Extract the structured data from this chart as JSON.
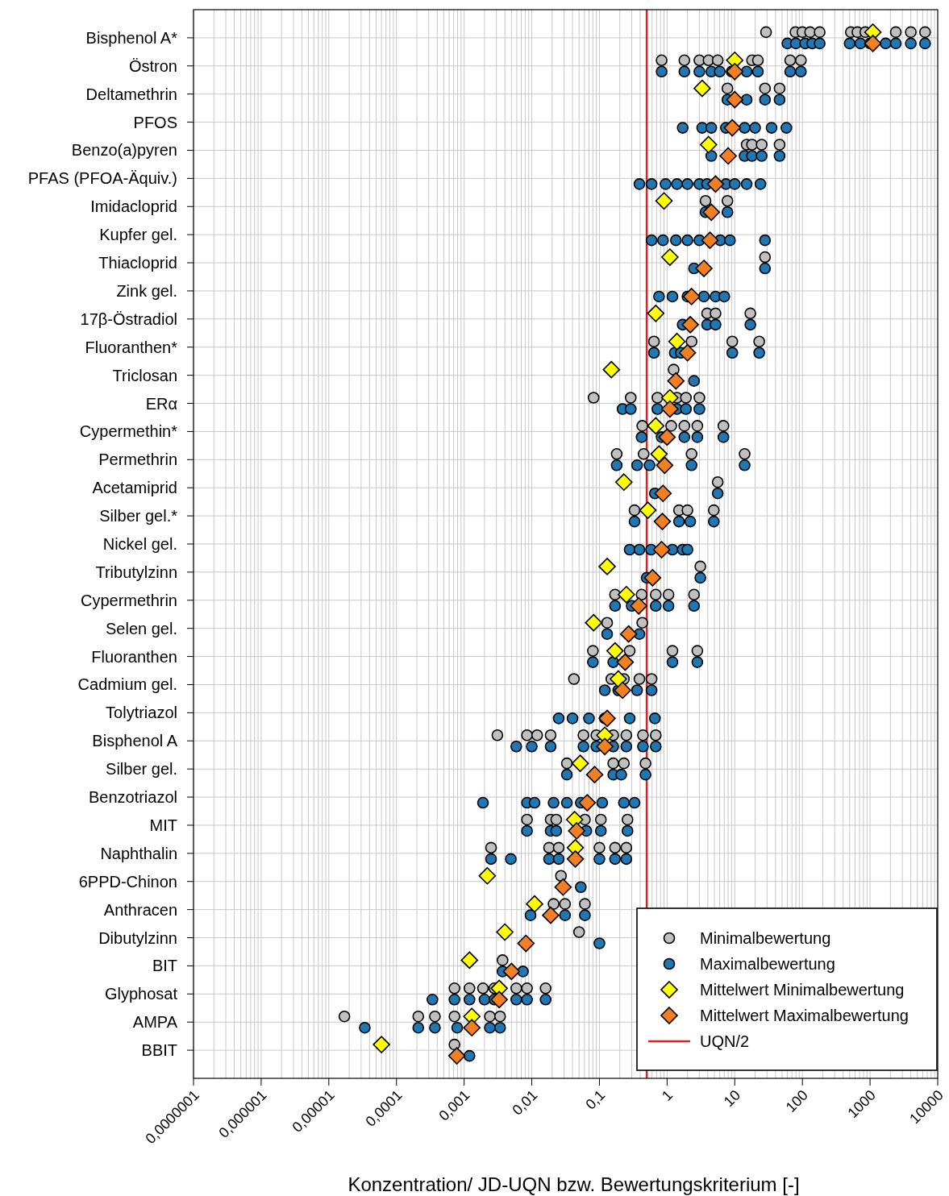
{
  "chart_data": {
    "type": "scatter",
    "orientation": "horizontal",
    "log": "x",
    "grid": true,
    "legend": "bottom right",
    "xlabel": "Konzentration/ JD-UQN bzw. Bewertungskriterium [-]",
    "categories": [
      "Bisphenol A*",
      "Östron",
      "Deltamethrin",
      "PFOS",
      "Benzo(a)pyren",
      "PFAS (PFOA-Äquiv.)",
      "Imidacloprid",
      "Kupfer gel.",
      "Thiacloprid",
      "Zink gel.",
      "17β-Östradiol",
      "Fluoranthen*",
      "Triclosan",
      "ERα",
      "Cypermethin*",
      "Permethrin",
      "Acetamiprid",
      "Silber gel.*",
      "Nickel gel.",
      "Tributylzinn",
      "Cypermethrin",
      "Selen gel.",
      "Fluoranthen",
      "Cadmium gel.",
      "Tolytriazol",
      "Bisphenol A",
      "Silber gel.",
      "Benzotriazol",
      "MIT",
      "Naphthalin",
      "6PPD-Chinon",
      "Anthracen",
      "Dibutylzinn",
      "BIT",
      "Glyphosat",
      "AMPA",
      "BBIT"
    ],
    "xlim": [
      1e-07,
      10000
    ],
    "xticks": [
      {
        "value": 1e-07,
        "label": "0,0000001"
      },
      {
        "value": 1e-06,
        "label": "0,000001"
      },
      {
        "value": 1e-05,
        "label": "0,00001"
      },
      {
        "value": 0.0001,
        "label": "0,0001"
      },
      {
        "value": 0.001,
        "label": "0,001"
      },
      {
        "value": 0.01,
        "label": "0,01"
      },
      {
        "value": 0.1,
        "label": "0,1"
      },
      1,
      10,
      100,
      1000,
      10000
    ],
    "ref_lines": [
      {
        "axis": "x",
        "value": 0.5,
        "label": "UQN/2",
        "color": "#e3211c"
      }
    ],
    "series": [
      {
        "name": "Minimalbewertung",
        "color": "#c0c0c0",
        "marker": "circle",
        "x": [
          "Bisphenol A*",
          "Bisphenol A*",
          "Bisphenol A*",
          "Bisphenol A*",
          "Bisphenol A*",
          "Bisphenol A*",
          "Bisphenol A*",
          "Bisphenol A*",
          "Bisphenol A*",
          "Bisphenol A*",
          "Bisphenol A*",
          "Östron",
          "Östron",
          "Östron",
          "Östron",
          "Östron",
          "Östron",
          "Östron",
          "Östron",
          "Östron",
          "Deltamethrin",
          "Deltamethrin",
          "Deltamethrin",
          "Benzo(a)pyren",
          "Benzo(a)pyren",
          "Benzo(a)pyren",
          "Benzo(a)pyren",
          "Imidacloprid",
          "Imidacloprid",
          "Thiacloprid",
          "17β-Östradiol",
          "17β-Östradiol",
          "17β-Östradiol",
          "Fluoranthen*",
          "Fluoranthen*",
          "Fluoranthen*",
          "Fluoranthen*",
          "Triclosan",
          "ERα",
          "ERα",
          "ERα",
          "ERα",
          "ERα",
          "ERα",
          "Cypermethin*",
          "Cypermethin*",
          "Cypermethin*",
          "Cypermethin*",
          "Cypermethin*",
          "Permethrin",
          "Permethrin",
          "Permethrin",
          "Permethrin",
          "Acetamiprid",
          "Silber gel.*",
          "Silber gel.*",
          "Silber gel.*",
          "Silber gel.*",
          "Tributylzinn",
          "Cypermethrin",
          "Cypermethrin",
          "Cypermethrin",
          "Cypermethrin",
          "Cypermethrin",
          "Selen gel.",
          "Selen gel.",
          "Fluoranthen",
          "Fluoranthen",
          "Fluoranthen",
          "Fluoranthen",
          "Cadmium gel.",
          "Cadmium gel.",
          "Cadmium gel.",
          "Cadmium gel.",
          "Cadmium gel.",
          "Bisphenol A",
          "Bisphenol A",
          "Bisphenol A",
          "Bisphenol A",
          "Bisphenol A",
          "Bisphenol A",
          "Bisphenol A",
          "Bisphenol A",
          "Bisphenol A",
          "Bisphenol A",
          "Silber gel.",
          "Silber gel.",
          "Silber gel.",
          "Silber gel.",
          "MIT",
          "MIT",
          "MIT",
          "MIT",
          "MIT",
          "MIT",
          "Naphthalin",
          "Naphthalin",
          "Naphthalin",
          "Naphthalin",
          "Naphthalin",
          "Naphthalin",
          "6PPD-Chinon",
          "Anthracen",
          "Anthracen",
          "Anthracen",
          "Dibutylzinn",
          "BIT",
          "Glyphosat",
          "Glyphosat",
          "Glyphosat",
          "Glyphosat",
          "Glyphosat",
          "Glyphosat",
          "Glyphosat",
          "AMPA",
          "AMPA",
          "AMPA",
          "AMPA",
          "AMPA",
          "AMPA",
          "BBIT"
        ],
        "values": [
          29,
          79,
          100,
          130,
          180,
          520,
          650,
          850,
          2400,
          4000,
          6500,
          0.83,
          1.8,
          3,
          4.1,
          5.6,
          18,
          22,
          66,
          95,
          7.8,
          28,
          46,
          15,
          18,
          25,
          46,
          3.7,
          7.8,
          28,
          3.9,
          5.2,
          17,
          0.64,
          2.3,
          9.2,
          23,
          1.25,
          0.082,
          0.29,
          0.72,
          1.4,
          1.9,
          3,
          0.43,
          1.15,
          1.8,
          2.8,
          6.8,
          0.18,
          0.45,
          2.3,
          14,
          5.6,
          0.33,
          1.5,
          2,
          4.9,
          3.1,
          0.17,
          0.42,
          0.68,
          1.05,
          2.5,
          0.13,
          0.43,
          0.08,
          0.28,
          1.2,
          2.8,
          0.042,
          0.15,
          0.23,
          0.39,
          0.59,
          0.0031,
          0.0085,
          0.012,
          0.019,
          0.058,
          0.09,
          0.16,
          0.25,
          0.44,
          0.68,
          0.033,
          0.16,
          0.23,
          0.48,
          0.0085,
          0.019,
          0.023,
          0.061,
          0.105,
          0.26,
          0.0025,
          0.018,
          0.025,
          0.1,
          0.17,
          0.25,
          0.027,
          0.021,
          0.031,
          0.061,
          0.05,
          0.0037,
          0.00072,
          0.0012,
          0.0019,
          0.0028,
          0.0059,
          0.0085,
          0.016,
          1.7e-05,
          0.00021,
          0.00037,
          0.00072,
          0.0024,
          0.0034,
          0.00072
        ]
      },
      {
        "name": "Maximalbewertung",
        "color": "#1f78b4",
        "marker": "circle",
        "x": [
          "Bisphenol A*",
          "Bisphenol A*",
          "Bisphenol A*",
          "Bisphenol A*",
          "Bisphenol A*",
          "Bisphenol A*",
          "Bisphenol A*",
          "Bisphenol A*",
          "Bisphenol A*",
          "Bisphenol A*",
          "Bisphenol A*",
          "Bisphenol A*",
          "Östron",
          "Östron",
          "Östron",
          "Östron",
          "Östron",
          "Östron",
          "Östron",
          "Östron",
          "Östron",
          "Östron",
          "Deltamethrin",
          "Deltamethrin",
          "Deltamethrin",
          "Deltamethrin",
          "PFOS",
          "PFOS",
          "PFOS",
          "PFOS",
          "PFOS",
          "PFOS",
          "PFOS",
          "PFOS",
          "Benzo(a)pyren",
          "Benzo(a)pyren",
          "Benzo(a)pyren",
          "Benzo(a)pyren",
          "Benzo(a)pyren",
          "PFAS (PFOA-Äquiv.)",
          "PFAS (PFOA-Äquiv.)",
          "PFAS (PFOA-Äquiv.)",
          "PFAS (PFOA-Äquiv.)",
          "PFAS (PFOA-Äquiv.)",
          "PFAS (PFOA-Äquiv.)",
          "PFAS (PFOA-Äquiv.)",
          "PFAS (PFOA-Äquiv.)",
          "PFAS (PFOA-Äquiv.)",
          "PFAS (PFOA-Äquiv.)",
          "PFAS (PFOA-Äquiv.)",
          "Imidacloprid",
          "Imidacloprid",
          "Imidacloprid",
          "Kupfer gel.",
          "Kupfer gel.",
          "Kupfer gel.",
          "Kupfer gel.",
          "Kupfer gel.",
          "Kupfer gel.",
          "Kupfer gel.",
          "Kupfer gel.",
          "Thiacloprid",
          "Thiacloprid",
          "Zink gel.",
          "Zink gel.",
          "Zink gel.",
          "Zink gel.",
          "Zink gel.",
          "Zink gel.",
          "17β-Östradiol",
          "17β-Östradiol",
          "17β-Östradiol",
          "17β-Östradiol",
          "Fluoranthen*",
          "Fluoranthen*",
          "Fluoranthen*",
          "Fluoranthen*",
          "Fluoranthen*",
          "Triclosan",
          "ERα",
          "ERα",
          "ERα",
          "ERα",
          "ERα",
          "ERα",
          "Cypermethin*",
          "Cypermethin*",
          "Cypermethin*",
          "Cypermethin*",
          "Cypermethin*",
          "Permethrin",
          "Permethrin",
          "Permethrin",
          "Permethrin",
          "Permethrin",
          "Acetamiprid",
          "Acetamiprid",
          "Silber gel.*",
          "Silber gel.*",
          "Silber gel.*",
          "Silber gel.*",
          "Nickel gel.",
          "Nickel gel.",
          "Nickel gel.",
          "Nickel gel.",
          "Nickel gel.",
          "Nickel gel.",
          "Tributylzinn",
          "Tributylzinn",
          "Cypermethrin",
          "Cypermethrin",
          "Cypermethrin",
          "Cypermethrin",
          "Cypermethrin",
          "Selen gel.",
          "Selen gel.",
          "Fluoranthen",
          "Fluoranthen",
          "Fluoranthen",
          "Fluoranthen",
          "Cadmium gel.",
          "Cadmium gel.",
          "Cadmium gel.",
          "Cadmium gel.",
          "Tolytriazol",
          "Tolytriazol",
          "Tolytriazol",
          "Tolytriazol",
          "Tolytriazol",
          "Tolytriazol",
          "Bisphenol A",
          "Bisphenol A",
          "Bisphenol A",
          "Bisphenol A",
          "Bisphenol A",
          "Bisphenol A",
          "Bisphenol A",
          "Bisphenol A",
          "Bisphenol A",
          "Silber gel.",
          "Silber gel.",
          "Silber gel.",
          "Silber gel.",
          "Benzotriazol",
          "Benzotriazol",
          "Benzotriazol",
          "Benzotriazol",
          "Benzotriazol",
          "Benzotriazol",
          "Benzotriazol",
          "Benzotriazol",
          "Benzotriazol",
          "MIT",
          "MIT",
          "MIT",
          "MIT",
          "MIT",
          "MIT",
          "Naphthalin",
          "Naphthalin",
          "Naphthalin",
          "Naphthalin",
          "Naphthalin",
          "Naphthalin",
          "Naphthalin",
          "6PPD-Chinon",
          "Anthracen",
          "Anthracen",
          "Anthracen",
          "Dibutylzinn",
          "BIT",
          "BIT",
          "Glyphosat",
          "Glyphosat",
          "Glyphosat",
          "Glyphosat",
          "Glyphosat",
          "Glyphosat",
          "Glyphosat",
          "Glyphosat",
          "AMPA",
          "AMPA",
          "AMPA",
          "AMPA",
          "AMPA",
          "AMPA",
          "BBIT"
        ],
        "values": [
          60,
          80,
          110,
          140,
          180,
          500,
          720,
          1000,
          1700,
          2400,
          4000,
          6500,
          0.83,
          1.8,
          3,
          4.5,
          6,
          9,
          15,
          22,
          66,
          95,
          7.8,
          15,
          28,
          46,
          1.7,
          3.3,
          4.5,
          7.4,
          14,
          20,
          35,
          58,
          4.5,
          14,
          18,
          25,
          46,
          0.39,
          0.59,
          0.95,
          1.4,
          2,
          3,
          3.9,
          7.4,
          10,
          15,
          24,
          3.7,
          4.3,
          7.8,
          0.59,
          0.87,
          1.35,
          2,
          3,
          6.1,
          8.5,
          28,
          2.5,
          28,
          0.76,
          1.2,
          2,
          3.5,
          5.2,
          7,
          1.7,
          3.9,
          5.2,
          17,
          0.64,
          1.3,
          1.6,
          9.2,
          23,
          2.5,
          0.22,
          0.29,
          0.72,
          1.4,
          1.9,
          3,
          0.42,
          0.83,
          1.8,
          2.8,
          6.8,
          0.18,
          0.36,
          0.55,
          2.3,
          14,
          0.66,
          5.6,
          0.33,
          1.5,
          2.2,
          4.9,
          0.28,
          0.39,
          0.58,
          1.2,
          1.7,
          2,
          0.5,
          3.1,
          0.17,
          0.3,
          0.68,
          1.05,
          2.5,
          0.13,
          0.39,
          0.08,
          0.16,
          1.2,
          2.8,
          0.12,
          0.19,
          0.36,
          0.59,
          0.025,
          0.04,
          0.07,
          0.12,
          0.28,
          0.66,
          0.0059,
          0.01,
          0.019,
          0.058,
          0.09,
          0.16,
          0.25,
          0.44,
          0.68,
          0.033,
          0.16,
          0.21,
          0.48,
          0.0019,
          0.0085,
          0.011,
          0.021,
          0.033,
          0.053,
          0.11,
          0.23,
          0.33,
          0.0085,
          0.019,
          0.023,
          0.064,
          0.105,
          0.26,
          0.0025,
          0.0049,
          0.018,
          0.025,
          0.1,
          0.17,
          0.25,
          0.053,
          0.0096,
          0.031,
          0.061,
          0.1,
          0.0037,
          0.0074,
          0.00034,
          0.00072,
          0.0012,
          0.002,
          0.0028,
          0.0059,
          0.0085,
          0.016,
          3.4e-05,
          0.00021,
          0.00037,
          0.00079,
          0.0024,
          0.0034,
          0.0012
        ]
      },
      {
        "name": "Mittelwert Minimalbewertung",
        "color": "#ffff00",
        "marker": "diamond",
        "values": [
          1100,
          10,
          3.3,
          null,
          4.1,
          null,
          0.9,
          null,
          1.1,
          null,
          0.68,
          1.4,
          0.15,
          1.1,
          0.68,
          0.76,
          0.23,
          0.52,
          null,
          0.13,
          0.25,
          0.082,
          0.17,
          0.19,
          null,
          0.12,
          0.052,
          null,
          0.043,
          0.044,
          0.0022,
          0.011,
          0.004,
          0.0012,
          0.0033,
          0.0013,
          6e-05
        ]
      },
      {
        "name": "Mittelwert Maximalbewertung",
        "color": "#f28022",
        "marker": "diamond",
        "values": [
          1100,
          10,
          10,
          9.2,
          8,
          5.2,
          4.5,
          4.3,
          3.5,
          2.3,
          2.2,
          2,
          1.35,
          1.1,
          1,
          0.92,
          0.87,
          0.85,
          0.83,
          0.61,
          0.38,
          0.27,
          0.24,
          0.22,
          0.13,
          0.12,
          0.085,
          0.066,
          0.046,
          0.044,
          0.029,
          0.019,
          0.0082,
          0.005,
          0.0033,
          0.0013,
          0.00078
        ]
      }
    ]
  }
}
